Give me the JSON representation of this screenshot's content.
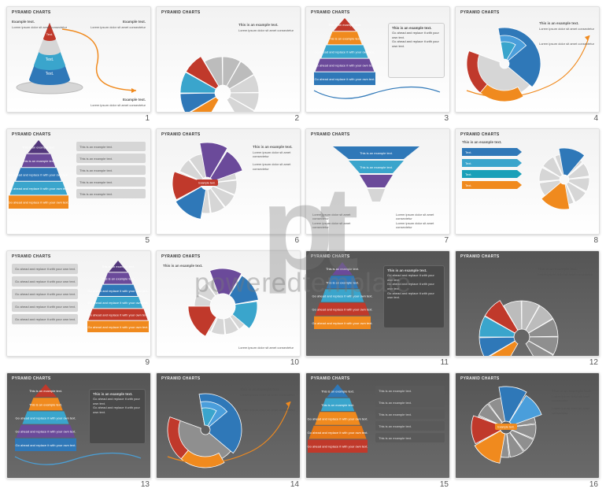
{
  "watermark": {
    "logo": "pt",
    "text": "poweredtemplate"
  },
  "slide_title": "PYRAMID CHARTS",
  "lorem_line": "Lorem ipsum dolor sit amet consectetur",
  "example_header": "This is an example text.",
  "example_long": "Go ahead and replace it with your own text.",
  "example_short": "Example text.",
  "label_text": "Text.",
  "palette": {
    "blue": "#2f78b8",
    "blue2": "#4a9edb",
    "cyan": "#3aa5cc",
    "teal": "#1aa0b8",
    "orange": "#f08a1e",
    "orange2": "#e77817",
    "red": "#c0392b",
    "red2": "#b33228",
    "purple": "#6b4a9a",
    "purple2": "#53387c",
    "grey": "#bcbcbc",
    "greyL": "#d6d6d6",
    "greyD": "#8f8f8f"
  },
  "slides": [
    {
      "n": 1,
      "bg": "light",
      "type": "cone3d"
    },
    {
      "n": 2,
      "bg": "light",
      "type": "fan-burst",
      "colors": [
        "orange",
        "blue",
        "cyan",
        "red",
        "grey",
        "grey",
        "grey"
      ]
    },
    {
      "n": 3,
      "bg": "light",
      "type": "pyramid-callout",
      "layers": [
        "red",
        "orange",
        "cyan",
        "purple",
        "blue"
      ]
    },
    {
      "n": 4,
      "bg": "light",
      "type": "radial-arc",
      "colors": [
        "blue",
        "cyan",
        "orange",
        "red"
      ]
    },
    {
      "n": 5,
      "bg": "light",
      "type": "pyramid-bars",
      "layers": [
        "purple2",
        "purple",
        "blue",
        "cyan",
        "orange"
      ],
      "bars": 5
    },
    {
      "n": 6,
      "bg": "light",
      "type": "fan-split",
      "colors": [
        "purple",
        "purple",
        "blue",
        "red"
      ]
    },
    {
      "n": 7,
      "bg": "light",
      "type": "funnel-inv",
      "layers": [
        "blue",
        "cyan",
        "purple",
        "greyL"
      ]
    },
    {
      "n": 8,
      "bg": "light",
      "type": "arrows-fan",
      "arrows": [
        "blue",
        "cyan",
        "teal",
        "orange"
      ],
      "fanColors": [
        "blue",
        "orange"
      ]
    },
    {
      "n": 9,
      "bg": "light",
      "type": "pyramid-textblock",
      "layers": [
        "purple2",
        "purple",
        "blue",
        "cyan",
        "red",
        "orange"
      ],
      "bars": 5
    },
    {
      "n": 10,
      "bg": "light",
      "type": "donut-burst",
      "colors": [
        "purple",
        "blue",
        "cyan",
        "red",
        "grey",
        "grey"
      ]
    },
    {
      "n": 11,
      "bg": "dark",
      "type": "pyramid-text-dark",
      "layers": [
        "purple",
        "blue",
        "cyan",
        "red",
        "orange"
      ]
    },
    {
      "n": 12,
      "bg": "dark",
      "type": "fan-burst-dark",
      "colors": [
        "orange",
        "blue",
        "cyan",
        "red",
        "grey",
        "grey",
        "grey"
      ]
    },
    {
      "n": 13,
      "bg": "dark",
      "type": "pyramid-callout",
      "layers": [
        "red",
        "orange",
        "cyan",
        "purple",
        "blue"
      ]
    },
    {
      "n": 14,
      "bg": "dark",
      "type": "radial-arc-dark",
      "colors": [
        "blue",
        "cyan",
        "orange",
        "red"
      ]
    },
    {
      "n": 15,
      "bg": "dark",
      "type": "pyramid-bars-dark",
      "layers": [
        "blue",
        "cyan",
        "orange",
        "orange2",
        "red"
      ],
      "bars": 5
    },
    {
      "n": 16,
      "bg": "dark",
      "type": "fan-split-dark",
      "colors": [
        "blue",
        "blue2",
        "orange",
        "red"
      ]
    }
  ]
}
